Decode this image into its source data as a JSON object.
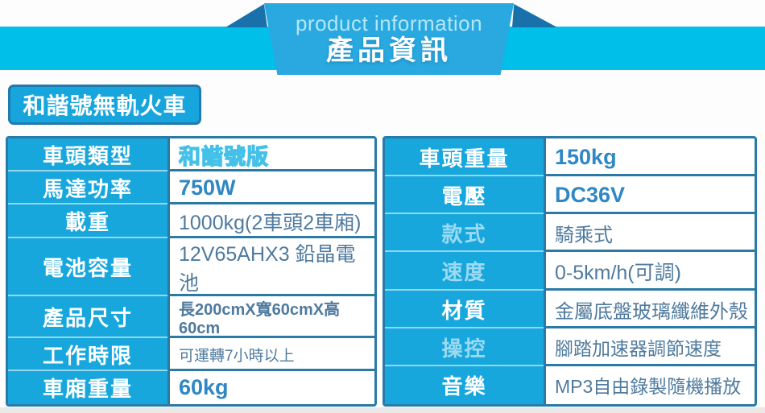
{
  "banner": {
    "subtitle": "product information",
    "title": "產品資訊"
  },
  "badge": {
    "text": "和諧號無軌火車"
  },
  "specs_left": [
    {
      "label": "車頭類型",
      "value": "和諧號版"
    },
    {
      "label": "馬達功率",
      "value": "750W"
    },
    {
      "label": "載重",
      "value": "1000kg(2車頭2車廂)"
    },
    {
      "label": "電池容量",
      "value": "12V65AHX3 鉛晶電池"
    },
    {
      "label": "產品尺寸",
      "value": "長200cmX寬60cmX高60cm"
    },
    {
      "label": "工作時限",
      "value": "可運轉7小時以上"
    },
    {
      "label": "車廂重量",
      "value": "60kg"
    }
  ],
  "specs_right": [
    {
      "label": "車頭重量",
      "value": "150kg"
    },
    {
      "label": "電壓",
      "value": "DC36V"
    },
    {
      "label": "款式",
      "value": "騎乘式"
    },
    {
      "label": "速度",
      "value": "0-5km/h(可調)"
    },
    {
      "label": "材質",
      "value": "金屬底盤玻璃纖維外殼"
    },
    {
      "label": "操控",
      "value": "腳踏加速器調節速度"
    },
    {
      "label": "音樂",
      "value": "MP3自由錄製隨機播放"
    }
  ],
  "colors": {
    "banner_band": "#00bfe9",
    "banner_center": "#2aa9e1",
    "banner_fold": "#1871ab",
    "label_cell_bg": "#17a7dd",
    "table_border": "#2b7aa6",
    "value_blue": "#2f87c3",
    "value_slate": "#4f7a9e"
  }
}
